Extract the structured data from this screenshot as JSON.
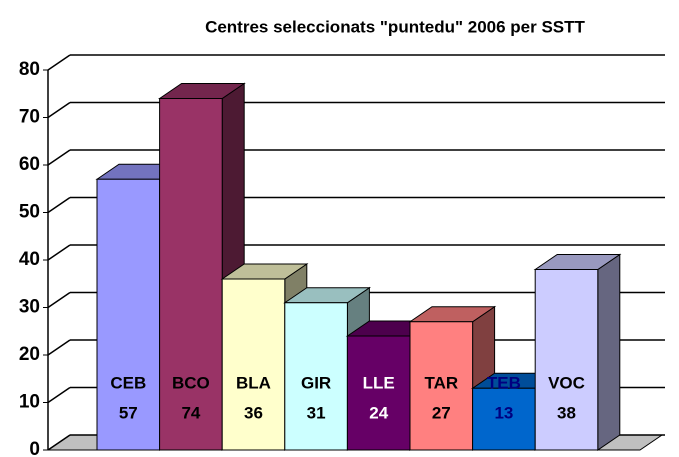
{
  "chart_data": {
    "type": "bar3d",
    "title": "Centres  seleccionats  \"puntedu\" 2006 per SSTT",
    "categories": [
      "CEB",
      "BCO",
      "BLA",
      "GIR",
      "LLE",
      "TAR",
      "TEB",
      "VOC"
    ],
    "values": [
      57,
      74,
      36,
      31,
      24,
      27,
      13,
      38
    ],
    "colors": [
      "#9999ff",
      "#993366",
      "#ffffcc",
      "#ccffff",
      "#660066",
      "#ff8080",
      "#0066cc",
      "#ccccff"
    ],
    "label_colors": [
      "#000000",
      "#000000",
      "#000000",
      "#000000",
      "#ffffff",
      "#000000",
      "#000080",
      "#000000"
    ],
    "ylim": [
      0,
      80
    ],
    "yticks": [
      0,
      10,
      20,
      30,
      40,
      50,
      60,
      70,
      80
    ],
    "grid": true
  }
}
